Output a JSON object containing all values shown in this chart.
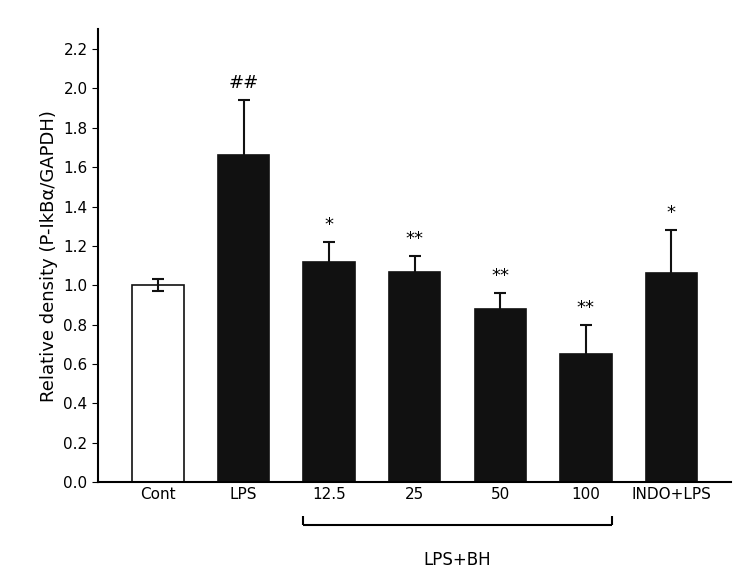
{
  "categories": [
    "Cont",
    "LPS",
    "12.5",
    "25",
    "50",
    "100",
    "INDO+LPS"
  ],
  "values": [
    1.0,
    1.66,
    1.12,
    1.07,
    0.88,
    0.65,
    1.06
  ],
  "errors": [
    0.03,
    0.28,
    0.1,
    0.08,
    0.08,
    0.15,
    0.22
  ],
  "bar_colors": [
    "#ffffff",
    "#111111",
    "#111111",
    "#111111",
    "#111111",
    "#111111",
    "#111111"
  ],
  "bar_edge_colors": [
    "#111111",
    "#111111",
    "#111111",
    "#111111",
    "#111111",
    "#111111",
    "#111111"
  ],
  "significance": [
    "",
    "##",
    "*",
    "**",
    "**",
    "**",
    "*"
  ],
  "ylabel": "Relative density (P-IkBα/GAPDH)",
  "ylim": [
    0,
    2.3
  ],
  "yticks": [
    0.0,
    0.2,
    0.4,
    0.6,
    0.8,
    1.0,
    1.2,
    1.4,
    1.6,
    1.8,
    2.0,
    2.2
  ],
  "bracket_group": [
    2,
    3,
    4,
    5
  ],
  "bracket_label": "LPS+BH",
  "background_color": "#ffffff",
  "bar_width": 0.6,
  "figsize": [
    7.54,
    5.88
  ],
  "dpi": 100
}
